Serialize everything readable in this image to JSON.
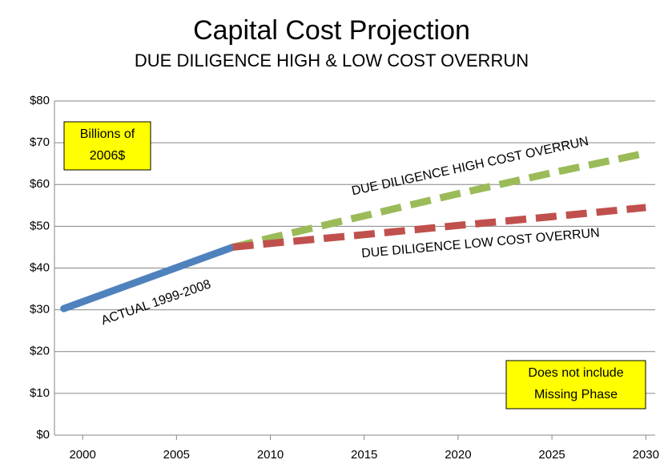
{
  "chart_data": {
    "type": "line",
    "title": "Capital Cost Projection",
    "subtitle": "DUE DILIGENCE HIGH & LOW COST OVERRUN",
    "xlim": [
      1998.5,
      2030.5
    ],
    "xticks": [
      2000,
      2005,
      2010,
      2015,
      2020,
      2025,
      2030
    ],
    "ylim": [
      0,
      80
    ],
    "yticks": [
      {
        "value": 0,
        "label": "$0"
      },
      {
        "value": 10,
        "label": "$10"
      },
      {
        "value": 20,
        "label": "$20"
      },
      {
        "value": 30,
        "label": "$30"
      },
      {
        "value": 40,
        "label": "$40"
      },
      {
        "value": 50,
        "label": "$50"
      },
      {
        "value": 60,
        "label": "$60"
      },
      {
        "value": 70,
        "label": "$70"
      },
      {
        "value": 80,
        "label": "$80"
      }
    ],
    "grid": true,
    "series": [
      {
        "name": "ACTUAL 1999-2008",
        "color": "#4f81bd",
        "dashed": false,
        "x": [
          1999,
          2008
        ],
        "values": [
          30.3,
          45
        ]
      },
      {
        "name": "DUE DILIGENCE HIGH COST OVERRUN",
        "color": "#9bbb59",
        "dashed": true,
        "x": [
          2008,
          2010,
          2015,
          2020,
          2025,
          2030
        ],
        "values": [
          45,
          47.2,
          52.5,
          57.8,
          62.8,
          67.5
        ]
      },
      {
        "name": "DUE DILIGENCE LOW COST OVERRUN",
        "color": "#c0504d",
        "dashed": true,
        "x": [
          2008,
          2010,
          2015,
          2020,
          2025,
          2030
        ],
        "values": [
          45,
          45.9,
          48,
          50.2,
          52.3,
          54.5
        ]
      }
    ],
    "annotations": [
      {
        "lines": [
          "Billions of",
          "2006$"
        ]
      },
      {
        "lines": [
          "Does not include",
          "Missing Phase"
        ]
      }
    ]
  }
}
